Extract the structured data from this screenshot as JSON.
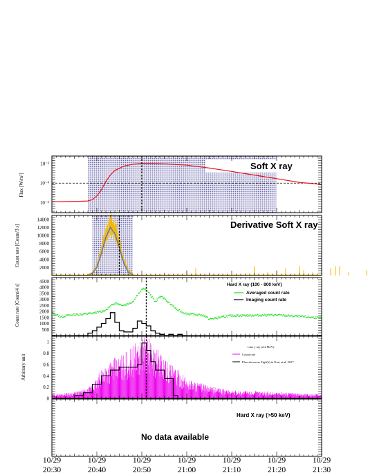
{
  "chart_data": [
    {
      "type": "line",
      "title": "Soft X ray",
      "ylabel": "Flux [W/m²]",
      "yscale": "log",
      "ylim": [
        3e-06,
        0.0025
      ],
      "y_ticks": [
        {
          "value": 1e-05,
          "label": "10⁻⁵"
        },
        {
          "value": 0.0001,
          "label": "10⁻⁴"
        },
        {
          "value": 0.001,
          "label": "10⁻³"
        }
      ],
      "reference_line": 0.0001,
      "shaded_intervals": [
        [
          "20:38",
          "20:53"
        ],
        [
          "20:53",
          "21:20"
        ]
      ],
      "series": [
        {
          "color": "#e8141e",
          "x": [
            "20:30",
            "20:36",
            "20:38",
            "20:39",
            "20:40",
            "20:41",
            "20:42",
            "20:43",
            "20:44",
            "20:46",
            "20:48",
            "20:50",
            "20:52",
            "20:55",
            "21:00",
            "21:05",
            "21:10",
            "21:15",
            "21:20",
            "21:25",
            "21:30"
          ],
          "y": [
            1.1e-05,
            1.15e-05,
            1.2e-05,
            1.4e-05,
            2.2e-05,
            4.5e-05,
            0.00012,
            0.00026,
            0.00045,
            0.00075,
            0.00095,
            0.00105,
            0.00105,
            0.001,
            0.00085,
            0.0006,
            0.0004,
            0.00026,
            0.00017,
            0.00011,
            8.5e-05
          ]
        }
      ],
      "cursor_line": "20:50"
    },
    {
      "type": "line",
      "title": "Derivative Soft X ray",
      "ylabel": "Count rate [Count/3 s]",
      "ylim": [
        0,
        15000
      ],
      "y_ticks": [
        2000,
        4000,
        6000,
        8000,
        10000,
        12000,
        14000
      ],
      "shaded_interval": [
        "20:39",
        "20:48"
      ],
      "series": [
        {
          "color": "#f5b800",
          "x": [
            "20:38",
            "20:39",
            "20:40",
            "20:41",
            "20:42",
            "20:43",
            "20:44",
            "20:45",
            "20:46",
            "20:47",
            "20:48"
          ],
          "y": [
            100,
            500,
            2300,
            6000,
            10000,
            12500,
            11500,
            8000,
            3500,
            1000,
            300
          ]
        },
        {
          "color": "#4a6fd0",
          "x": [
            "20:38",
            "20:39",
            "20:40",
            "20:41",
            "20:42",
            "20:43",
            "20:44",
            "20:45",
            "20:46",
            "20:47",
            "20:48"
          ],
          "y": [
            50,
            500,
            2000,
            5500,
            9500,
            12000,
            10500,
            7000,
            3000,
            800,
            100
          ]
        }
      ],
      "cursor_line": "20:45"
    },
    {
      "type": "line",
      "title": "Hard X ray (100 - 800 keV)",
      "ylabel": "Count rate [Count/4 s]",
      "ylim": [
        0,
        4800
      ],
      "y_ticks": [
        500,
        1000,
        1500,
        2000,
        2500,
        3000,
        3500,
        4000,
        4500
      ],
      "series": [
        {
          "name": "Averaged count rate",
          "color": "#22dd22",
          "x": [
            "20:30",
            "20:32",
            "20:34",
            "20:36",
            "20:38",
            "20:40",
            "20:42",
            "20:44",
            "20:46",
            "20:48",
            "20:49",
            "20:50",
            "20:51",
            "20:52",
            "20:53",
            "20:54",
            "20:55",
            "20:56",
            "20:58",
            "21:00",
            "21:04",
            "21:05",
            "21:10",
            "21:20",
            "21:30"
          ],
          "y": [
            1900,
            1550,
            1700,
            1750,
            1800,
            1900,
            2100,
            2700,
            2500,
            2800,
            3300,
            3800,
            3900,
            3300,
            2800,
            3200,
            3100,
            2700,
            2100,
            1800,
            1650,
            1350,
            1650,
            1700,
            1450
          ]
        },
        {
          "name": "Imaging count rate",
          "color": "#000000",
          "x": [
            "20:35",
            "20:37",
            "20:38",
            "20:39",
            "20:40",
            "20:41",
            "20:42",
            "20:43",
            "20:44",
            "20:45",
            "20:46",
            "20:47",
            "20:48",
            "20:49",
            "20:50",
            "20:51",
            "20:52",
            "20:53",
            "20:54",
            "20:55",
            "20:56",
            "20:57",
            "20:58",
            "20:59"
          ],
          "y": [
            0,
            0,
            200,
            400,
            700,
            1000,
            1400,
            1900,
            1100,
            400,
            300,
            300,
            600,
            1200,
            1000,
            800,
            400,
            200,
            100,
            0,
            100,
            0,
            100,
            0
          ]
        }
      ],
      "cursor_line": "20:51"
    },
    {
      "type": "line",
      "ylabel": "Arbitrary unit",
      "ylim": [
        0,
        1.1
      ],
      "y_ticks": [
        0,
        0.2,
        0.4,
        0.6,
        0.8,
        1
      ],
      "legend_title": "Line γ ray (2.2 MeV)",
      "series": [
        {
          "name": "Count rate",
          "color": "#ee00ee",
          "x": [
            "20:30",
            "20:35",
            "20:38",
            "20:40",
            "20:42",
            "20:44",
            "20:46",
            "20:48",
            "20:50",
            "20:51",
            "20:52",
            "20:54",
            "20:56",
            "20:58",
            "21:00",
            "21:05",
            "21:10",
            "21:20",
            "21:30"
          ],
          "y": [
            0.05,
            0.08,
            0.12,
            0.25,
            0.45,
            0.5,
            0.55,
            0.65,
            0.75,
            0.8,
            0.7,
            0.6,
            0.45,
            0.35,
            0.25,
            0.15,
            0.1,
            0.08,
            0.05
          ]
        },
        {
          "name": "Flux shown as Fig4(b) in Kurt et.al. 2017",
          "color": "#000000",
          "x": [
            "20:35",
            "20:37",
            "20:39",
            "20:41",
            "20:43",
            "20:45",
            "20:47",
            "20:49",
            "20:50",
            "20:51",
            "20:52",
            "20:53",
            "20:55",
            "20:57",
            "20:58"
          ],
          "y": [
            0.05,
            0.1,
            0.25,
            0.4,
            0.5,
            0.55,
            0.55,
            0.6,
            0.98,
            0.85,
            0.65,
            0.5,
            0.35,
            0.05,
            0
          ]
        }
      ],
      "cursor_line": "20:51"
    },
    {
      "type": "line",
      "title": "Hard X ray (>50 keV)",
      "message": "No data available"
    }
  ],
  "x_axis": {
    "ticks": [
      {
        "date": "10/29",
        "time": "20:30"
      },
      {
        "date": "10/29",
        "time": "20:40"
      },
      {
        "date": "10/29",
        "time": "20:50"
      },
      {
        "date": "10/29",
        "time": "21:00"
      },
      {
        "date": "10/29",
        "time": "21:10"
      },
      {
        "date": "10/29",
        "time": "21:20"
      },
      {
        "date": "10/29",
        "time": "21:30"
      }
    ]
  }
}
